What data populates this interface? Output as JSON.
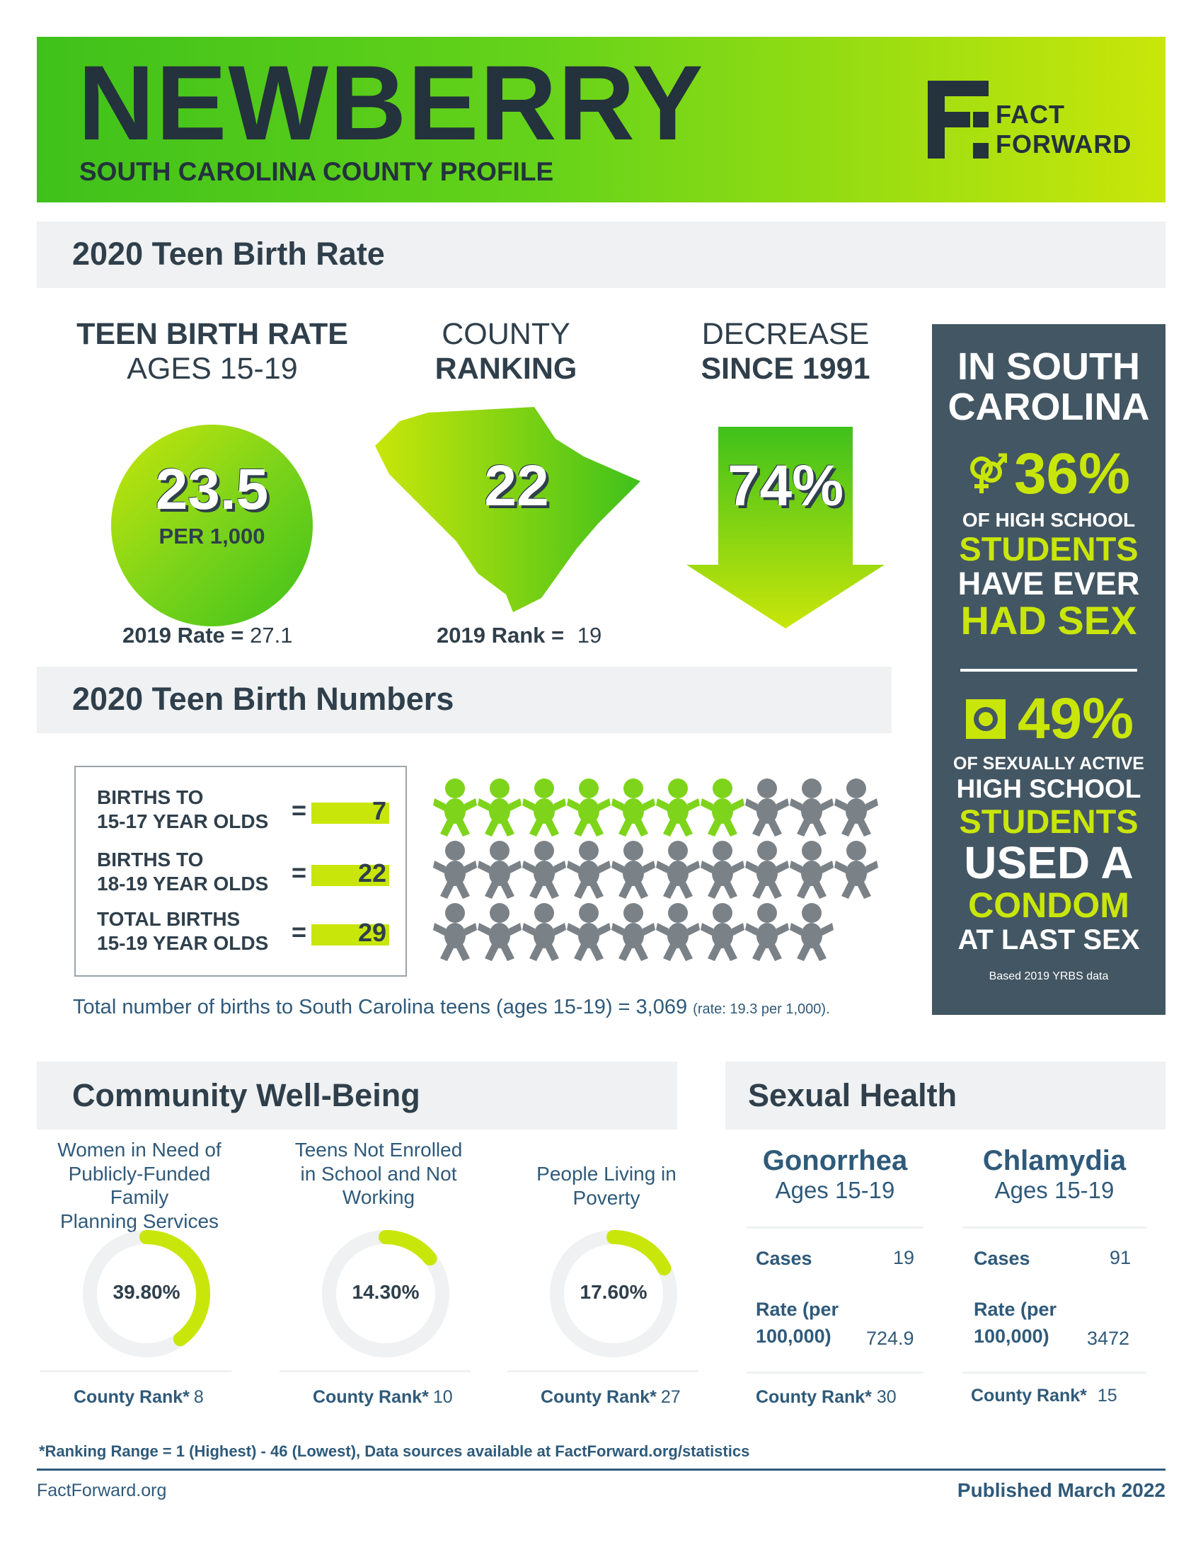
{
  "header": {
    "county": "NEWBERRY",
    "subtitle": "SOUTH CAROLINA COUNTY PROFILE",
    "logo_line1": "FACT",
    "logo_line2": "FORWARD"
  },
  "birth_rate_section": {
    "title": "2020 Teen Birth Rate",
    "rate": {
      "heading_line1": "TEEN BIRTH RATE",
      "heading_line2": "AGES 15-19",
      "value": "23.5",
      "unit": "PER 1,000",
      "prev_label": "2019 Rate =",
      "prev_value": "27.1"
    },
    "ranking": {
      "heading_line1": "COUNTY",
      "heading_line2": "RANKING",
      "value": "22",
      "prev_label": "2019 Rank =",
      "prev_value": "19"
    },
    "decrease": {
      "heading_line1": "DECREASE",
      "heading_line2": "SINCE 1991",
      "value": "74%"
    }
  },
  "sc_panel": {
    "title_line1": "IN SOUTH",
    "title_line2": "CAROLINA",
    "stat1_value": "36%",
    "stat1_line1": "OF HIGH SCHOOL",
    "stat1_line2": "STUDENTS",
    "stat1_line3": "HAVE EVER",
    "stat1_line4": "HAD SEX",
    "stat2_value": "49%",
    "stat2_line1": "OF SEXUALLY ACTIVE",
    "stat2_line2": "HIGH SCHOOL",
    "stat2_line3": "STUDENTS",
    "stat2_line4": "USED A",
    "stat2_line5": "CONDOM",
    "stat2_line6": "AT LAST SEX",
    "source": "Based 2019 YRBS data",
    "icon1": "gender-symbols-icon",
    "icon2": "condom-icon"
  },
  "birth_numbers_section": {
    "title": "2020 Teen Birth Numbers",
    "rows": [
      {
        "label_line1": "BIRTHS TO",
        "label_line2": "15-17 YEAR OLDS",
        "eq": "=",
        "value": "7"
      },
      {
        "label_line1": "BIRTHS TO",
        "label_line2": "18-19 YEAR OLDS",
        "eq": "=",
        "value": "22"
      },
      {
        "label_line1": "TOTAL BIRTHS",
        "label_line2": "15-19 YEAR OLDS",
        "eq": "=",
        "value": "29"
      }
    ],
    "baby_icons": {
      "green": 7,
      "gray": 22,
      "icon": "baby-icon"
    },
    "footer_main": "Total number of births to South Carolina teens (ages 15-19) = 3,069",
    "footer_small": "(rate: 19.3 per 1,000)."
  },
  "community_section": {
    "title": "Community Well-Being",
    "items": [
      {
        "heading": [
          "Women in Need of",
          "Publicly-Funded Family",
          "Planning Services"
        ],
        "value": "39.80%",
        "fraction": 0.398,
        "rank_label": "County Rank*",
        "rank": "8"
      },
      {
        "heading": [
          "Teens Not Enrolled",
          "in School and Not",
          "Working"
        ],
        "value": "14.30%",
        "fraction": 0.143,
        "rank_label": "County Rank*",
        "rank": "10"
      },
      {
        "heading": [
          "People Living in",
          "Poverty"
        ],
        "value": "17.60%",
        "fraction": 0.176,
        "rank_label": "County Rank*",
        "rank": "27"
      }
    ]
  },
  "sexual_health_section": {
    "title": "Sexual Health",
    "diseases": [
      {
        "name": "Gonorrhea",
        "ages": "Ages 15-19",
        "cases_label": "Cases",
        "cases": "19",
        "rate_label_line1": "Rate (per",
        "rate_label_line2": "100,000)",
        "rate": "724.9",
        "rank_label": "County Rank*",
        "rank": "30"
      },
      {
        "name": "Chlamydia",
        "ages": "Ages 15-19",
        "cases_label": "Cases",
        "cases": "91",
        "rate_label_line1": "Rate (per",
        "rate_label_line2": "100,000)",
        "rate": "3472",
        "rank_label": "County Rank*",
        "rank": "15"
      }
    ]
  },
  "footer": {
    "note": "*Ranking Range = 1 (Highest) - 46 (Lowest), Data sources available at FactForward.org/statistics",
    "site": "FactForward.org",
    "published": "Published March 2022"
  },
  "colors": {
    "lime": "#c9e60a",
    "green": "#3fc11b",
    "navy": "#2f3f4b",
    "panel": "#435663",
    "gray": "#7b8287"
  }
}
